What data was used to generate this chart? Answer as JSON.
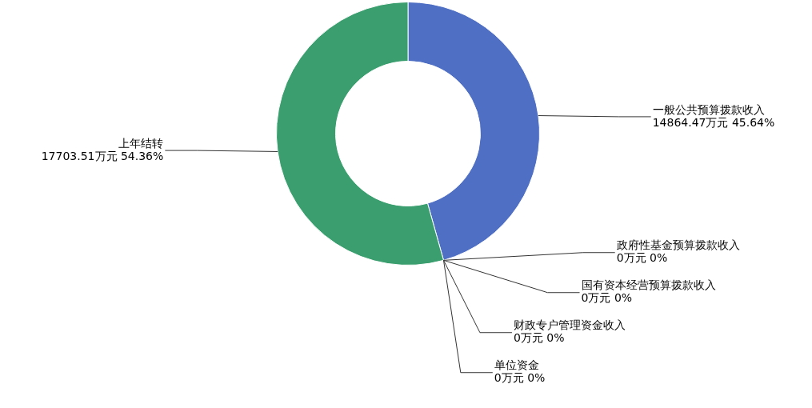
{
  "chart_data": {
    "type": "donut",
    "categories": [
      "一般公共预算拨款收入",
      "政府性基金预算拨款收入",
      "国有资本经营预算拨款收入",
      "财政专户管理资金收入",
      "单位资金",
      "上年结转"
    ],
    "values": [
      14864.47,
      0,
      0,
      0,
      0,
      17703.51
    ],
    "colors": [
      "#4f6fc4",
      "#e0a030",
      "#c04040",
      "#7a5cb0",
      "#40a0c0",
      "#3a9e6e"
    ],
    "value_labels": [
      "14864.47万元 45.64%",
      "0万元 0%",
      "0万元 0%",
      "0万元 0%",
      "0万元 0%",
      "17703.51万元 54.36%"
    ]
  }
}
